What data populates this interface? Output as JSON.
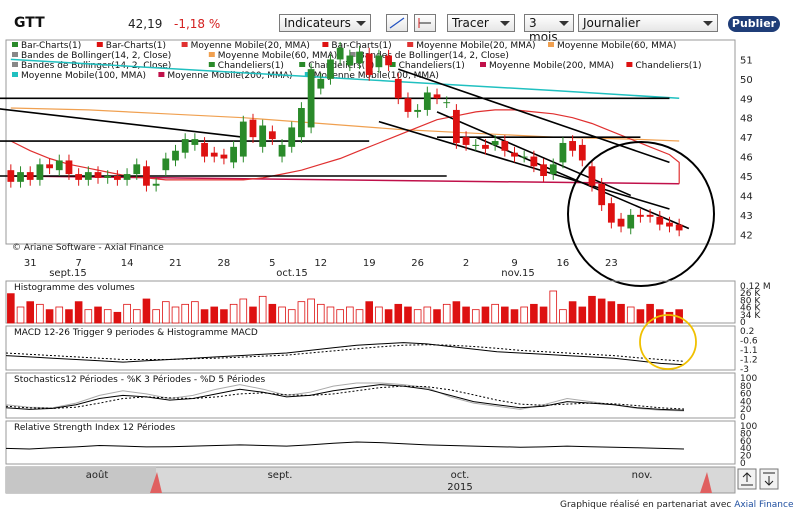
{
  "header": {
    "ticker": "GTT",
    "price": "42,19",
    "change": "-1,18 %",
    "indicators_label": "Indicateurs",
    "draw_label": "Tracer",
    "period_label": "3 mois",
    "interval_label": "Journalier",
    "publish_label": "Publier"
  },
  "footer": {
    "text": "Graphique réalisé en partenariat avec",
    "link": "Axial Finance"
  },
  "colors": {
    "up": "#2a8a2a",
    "down": "#dd1111",
    "ma20": "#e03030",
    "ma60": "#f0a050",
    "ma100": "#20c0c0",
    "ma200": "#c0104a",
    "highlight_black": "#000000",
    "highlight_yellow": "#f0c000"
  },
  "chart_data": [
    {
      "type": "candlestick",
      "legend": [
        {
          "name": "Bar-Charts(1)",
          "color": "#2a8a2a"
        },
        {
          "name": "Bar-Charts(1)",
          "color": "#dd1111"
        },
        {
          "name": "Moyenne Mobile(20, MMA)",
          "color": "#e03030"
        },
        {
          "name": "Bar-Charts(1)",
          "color": "#dd1111"
        },
        {
          "name": "Moyenne Mobile(20, MMA)",
          "color": "#e03030"
        },
        {
          "name": "Moyenne Mobile(60, MMA)",
          "color": "#f0a050"
        },
        {
          "name": "Bandes de Bollinger(14, 2, Close)",
          "color": "#888888"
        },
        {
          "name": "Moyenne Mobile(60, MMA)",
          "color": "#f0a050"
        },
        {
          "name": "Bandes de Bollinger(14, 2, Close)",
          "color": "#888888"
        },
        {
          "name": "Bandes de Bollinger(14, 2, Close)",
          "color": "#888888"
        },
        {
          "name": "Chandeliers(1)",
          "color": "#2a8a2a"
        },
        {
          "name": "Chandeliers(1)",
          "color": "#2a8a2a"
        },
        {
          "name": "Chandeliers(1)",
          "color": "#2a8a2a"
        },
        {
          "name": "Moyenne Mobile(200, MMA)",
          "color": "#c0104a"
        },
        {
          "name": "Chandeliers(1)",
          "color": "#dd1111"
        },
        {
          "name": "Moyenne Mobile(100, MMA)",
          "color": "#20c0c0"
        },
        {
          "name": "Moyenne Mobile(200, MMA)",
          "color": "#c0104a"
        },
        {
          "name": "Moyenne Mobile(100, MMA)",
          "color": "#20c0c0"
        }
      ],
      "watermark": "© Ariane Software - Axial Finance",
      "ylim": [
        41.5,
        52
      ],
      "yticks": [
        42,
        43,
        44,
        45,
        46,
        47,
        48,
        49,
        50,
        51
      ],
      "xtick_labels": [
        "31",
        "7",
        "14",
        "21",
        "28",
        "5",
        "12",
        "19",
        "26",
        "2",
        "9",
        "16",
        "23"
      ],
      "month_labels": [
        "sept.15",
        "oct.15",
        "nov.15"
      ],
      "candles": [
        {
          "o": 45.3,
          "c": 44.7
        },
        {
          "o": 44.7,
          "c": 45.2
        },
        {
          "o": 45.2,
          "c": 44.8
        },
        {
          "o": 44.8,
          "c": 45.6
        },
        {
          "o": 45.6,
          "c": 45.4
        },
        {
          "o": 45.3,
          "c": 45.8
        },
        {
          "o": 45.8,
          "c": 45.1
        },
        {
          "o": 45.1,
          "c": 44.8
        },
        {
          "o": 44.8,
          "c": 45.2
        },
        {
          "o": 45.2,
          "c": 44.9
        },
        {
          "o": 44.9,
          "c": 45.0
        },
        {
          "o": 45.0,
          "c": 44.8
        },
        {
          "o": 44.8,
          "c": 45.1
        },
        {
          "o": 45.1,
          "c": 45.6
        },
        {
          "o": 45.5,
          "c": 44.5
        },
        {
          "o": 44.5,
          "c": 44.6
        },
        {
          "o": 45.3,
          "c": 45.9
        },
        {
          "o": 45.8,
          "c": 46.3
        },
        {
          "o": 46.2,
          "c": 46.9
        },
        {
          "o": 46.6,
          "c": 46.9
        },
        {
          "o": 46.7,
          "c": 46.0
        },
        {
          "o": 46.2,
          "c": 46.0
        },
        {
          "o": 46.1,
          "c": 45.9
        },
        {
          "o": 45.7,
          "c": 46.5
        },
        {
          "o": 46.0,
          "c": 47.8
        },
        {
          "o": 47.9,
          "c": 47.0
        },
        {
          "o": 46.5,
          "c": 47.6
        },
        {
          "o": 47.3,
          "c": 46.9
        },
        {
          "o": 46.0,
          "c": 46.6
        },
        {
          "o": 46.5,
          "c": 47.5
        },
        {
          "o": 47.0,
          "c": 48.5
        },
        {
          "o": 47.5,
          "c": 50.5
        },
        {
          "o": 49.5,
          "c": 50.0
        },
        {
          "o": 50.0,
          "c": 51.0
        },
        {
          "o": 51.0,
          "c": 51.6
        },
        {
          "o": 50.7,
          "c": 51.2
        },
        {
          "o": 50.8,
          "c": 51.4
        },
        {
          "o": 51.3,
          "c": 50.2
        },
        {
          "o": 50.6,
          "c": 51.2
        },
        {
          "o": 51.2,
          "c": 50.7
        },
        {
          "o": 50.0,
          "c": 49.0
        },
        {
          "o": 49.0,
          "c": 48.3
        },
        {
          "o": 48.3,
          "c": 48.4
        },
        {
          "o": 48.4,
          "c": 49.3
        },
        {
          "o": 49.2,
          "c": 49.0
        },
        {
          "o": 48.8,
          "c": 48.8
        },
        {
          "o": 48.4,
          "c": 46.7
        },
        {
          "o": 47.0,
          "c": 46.6
        },
        {
          "o": 46.6,
          "c": 46.6
        },
        {
          "o": 46.6,
          "c": 46.4
        },
        {
          "o": 46.6,
          "c": 46.8
        },
        {
          "o": 46.8,
          "c": 46.3
        },
        {
          "o": 46.2,
          "c": 46.0
        },
        {
          "o": 46.0,
          "c": 46.0
        },
        {
          "o": 46.0,
          "c": 45.5
        },
        {
          "o": 45.6,
          "c": 45.0
        },
        {
          "o": 45.1,
          "c": 45.6
        },
        {
          "o": 45.7,
          "c": 46.7
        },
        {
          "o": 46.8,
          "c": 46.3
        },
        {
          "o": 46.6,
          "c": 45.8
        },
        {
          "o": 45.5,
          "c": 44.5
        },
        {
          "o": 44.6,
          "c": 43.5
        },
        {
          "o": 43.6,
          "c": 42.6
        },
        {
          "o": 42.8,
          "c": 42.4
        },
        {
          "o": 42.3,
          "c": 43.0
        },
        {
          "o": 43.0,
          "c": 42.9
        },
        {
          "o": 43.0,
          "c": 42.9
        },
        {
          "o": 42.9,
          "c": 42.5
        },
        {
          "o": 42.6,
          "c": 42.4
        },
        {
          "o": 42.5,
          "c": 42.2
        }
      ],
      "ma20": [
        46.8,
        46.3,
        45.9,
        45.6,
        45.4,
        45.2,
        45.0,
        44.9,
        44.8,
        44.8,
        44.8,
        44.8,
        44.8,
        44.9,
        45.1,
        45.3,
        45.6,
        45.9,
        46.3,
        46.7,
        47.1,
        47.5,
        47.9,
        48.1,
        48.3,
        48.4,
        48.4,
        48.3,
        48.2,
        48.0,
        47.7,
        47.3,
        46.9,
        46.5,
        46.1,
        45.7,
        45.4,
        45.0,
        44.6
      ],
      "ma20_step": 2,
      "ma60": [
        48.5,
        48.4,
        48.2,
        48.0,
        47.7,
        47.4,
        47.2,
        47.0,
        46.9,
        46.8
      ],
      "ma100": [
        51.0,
        50.6,
        50.2,
        49.8,
        49.4,
        49.0
      ],
      "ma200": [
        45.0,
        44.6
      ],
      "trendlines": [
        {
          "x1": -2,
          "y1": 48.5,
          "x2": 24,
          "y2": 47.0
        },
        {
          "x1": -2,
          "y1": 49.0,
          "x2": 68,
          "y2": 49.0
        },
        {
          "x1": -2,
          "y1": 46.8,
          "x2": 37,
          "y2": 46.8
        },
        {
          "x1": -2,
          "y1": 45.0,
          "x2": 45,
          "y2": 45.0
        },
        {
          "x1": 44,
          "y1": 48.3,
          "x2": 64,
          "y2": 44.0
        },
        {
          "x1": 40,
          "y1": 50.5,
          "x2": 68,
          "y2": 45.7
        },
        {
          "x1": 38,
          "y1": 47.8,
          "x2": 68,
          "y2": 43.3
        },
        {
          "x1": 44,
          "y1": 47.0,
          "x2": 65,
          "y2": 47.0
        },
        {
          "x1": 48,
          "y1": 47.0,
          "x2": 70,
          "y2": 42.3
        }
      ]
    },
    {
      "type": "bar",
      "title": "Histogramme des volumes",
      "ytick_labels": [
        "0.12 M",
        "26 K",
        "80 K",
        "46 K",
        "34 K",
        "0"
      ],
      "values": [
        0.11,
        0.06,
        0.08,
        0.07,
        0.05,
        0.06,
        0.05,
        0.08,
        0.05,
        0.06,
        0.05,
        0.04,
        0.07,
        0.05,
        0.09,
        0.05,
        0.08,
        0.06,
        0.07,
        0.08,
        0.05,
        0.06,
        0.05,
        0.07,
        0.09,
        0.06,
        0.1,
        0.07,
        0.06,
        0.05,
        0.08,
        0.09,
        0.07,
        0.06,
        0.05,
        0.06,
        0.05,
        0.08,
        0.06,
        0.05,
        0.07,
        0.06,
        0.05,
        0.06,
        0.05,
        0.07,
        0.08,
        0.06,
        0.05,
        0.06,
        0.07,
        0.06,
        0.05,
        0.06,
        0.07,
        0.06,
        0.12,
        0.05,
        0.08,
        0.06,
        0.1,
        0.09,
        0.08,
        0.07,
        0.06,
        0.05,
        0.07,
        0.05,
        0.04,
        0.05
      ]
    },
    {
      "type": "line",
      "title": "MACD 12-26 Trigger 9 periodes & Histogramme MACD",
      "ytick_labels": [
        "0.2",
        "-0.6",
        "-1.1",
        "-1.2",
        "-3"
      ],
      "macd": [
        -0.3,
        -0.35,
        -0.4,
        -0.45,
        -0.5,
        -0.55,
        -0.5,
        -0.45,
        -0.4,
        -0.35,
        -0.3,
        -0.25,
        -0.2,
        -0.1,
        0.0,
        0.1,
        0.15,
        0.2,
        0.15,
        0.05,
        -0.05,
        -0.15,
        -0.2,
        -0.25,
        -0.3,
        -0.35,
        -0.4,
        -0.5,
        -0.6,
        -0.65
      ],
      "signal": [
        -0.2,
        -0.25,
        -0.3,
        -0.35,
        -0.4,
        -0.45,
        -0.45,
        -0.45,
        -0.42,
        -0.4,
        -0.36,
        -0.32,
        -0.28,
        -0.2,
        -0.12,
        -0.04,
        0.04,
        0.1,
        0.12,
        0.1,
        0.05,
        -0.02,
        -0.1,
        -0.15,
        -0.2,
        -0.25,
        -0.3,
        -0.38,
        -0.45,
        -0.52
      ]
    },
    {
      "type": "line",
      "title": "Stochastics12 Périodes - %K 3 Périodes - %D 5 Périodes",
      "ytick_labels": [
        "100",
        "80",
        "60",
        "40",
        "20",
        "0"
      ],
      "k": [
        20,
        15,
        18,
        30,
        50,
        60,
        55,
        45,
        50,
        65,
        80,
        70,
        55,
        60,
        75,
        85,
        95,
        90,
        80,
        60,
        40,
        30,
        20,
        25,
        40,
        35,
        30,
        20,
        15,
        12
      ],
      "d": [
        25,
        20,
        18,
        22,
        35,
        50,
        55,
        52,
        50,
        55,
        65,
        68,
        62,
        60,
        65,
        75,
        85,
        90,
        88,
        78,
        62,
        45,
        32,
        28,
        32,
        35,
        33,
        27,
        20,
        16
      ],
      "light": [
        30,
        22,
        20,
        35,
        60,
        75,
        65,
        50,
        60,
        80,
        95,
        80,
        60,
        70,
        90,
        100,
        100,
        95,
        85,
        55,
        35,
        25,
        15,
        30,
        50,
        40,
        30,
        18,
        12,
        10
      ]
    },
    {
      "type": "line",
      "title": "Relative Strength Index 12 Périodes",
      "ytick_labels": [
        "100",
        "80",
        "60",
        "40",
        "20",
        "0"
      ],
      "values": [
        40,
        38,
        42,
        45,
        50,
        48,
        45,
        46,
        48,
        50,
        52,
        50,
        48,
        52,
        58,
        62,
        60,
        56,
        52,
        50,
        48,
        46,
        44,
        45,
        48,
        46,
        44,
        42,
        40,
        38
      ]
    }
  ],
  "navigator": {
    "month_labels": [
      "août",
      "sept.",
      "oct.",
      "nov."
    ],
    "year_label": "2015"
  }
}
